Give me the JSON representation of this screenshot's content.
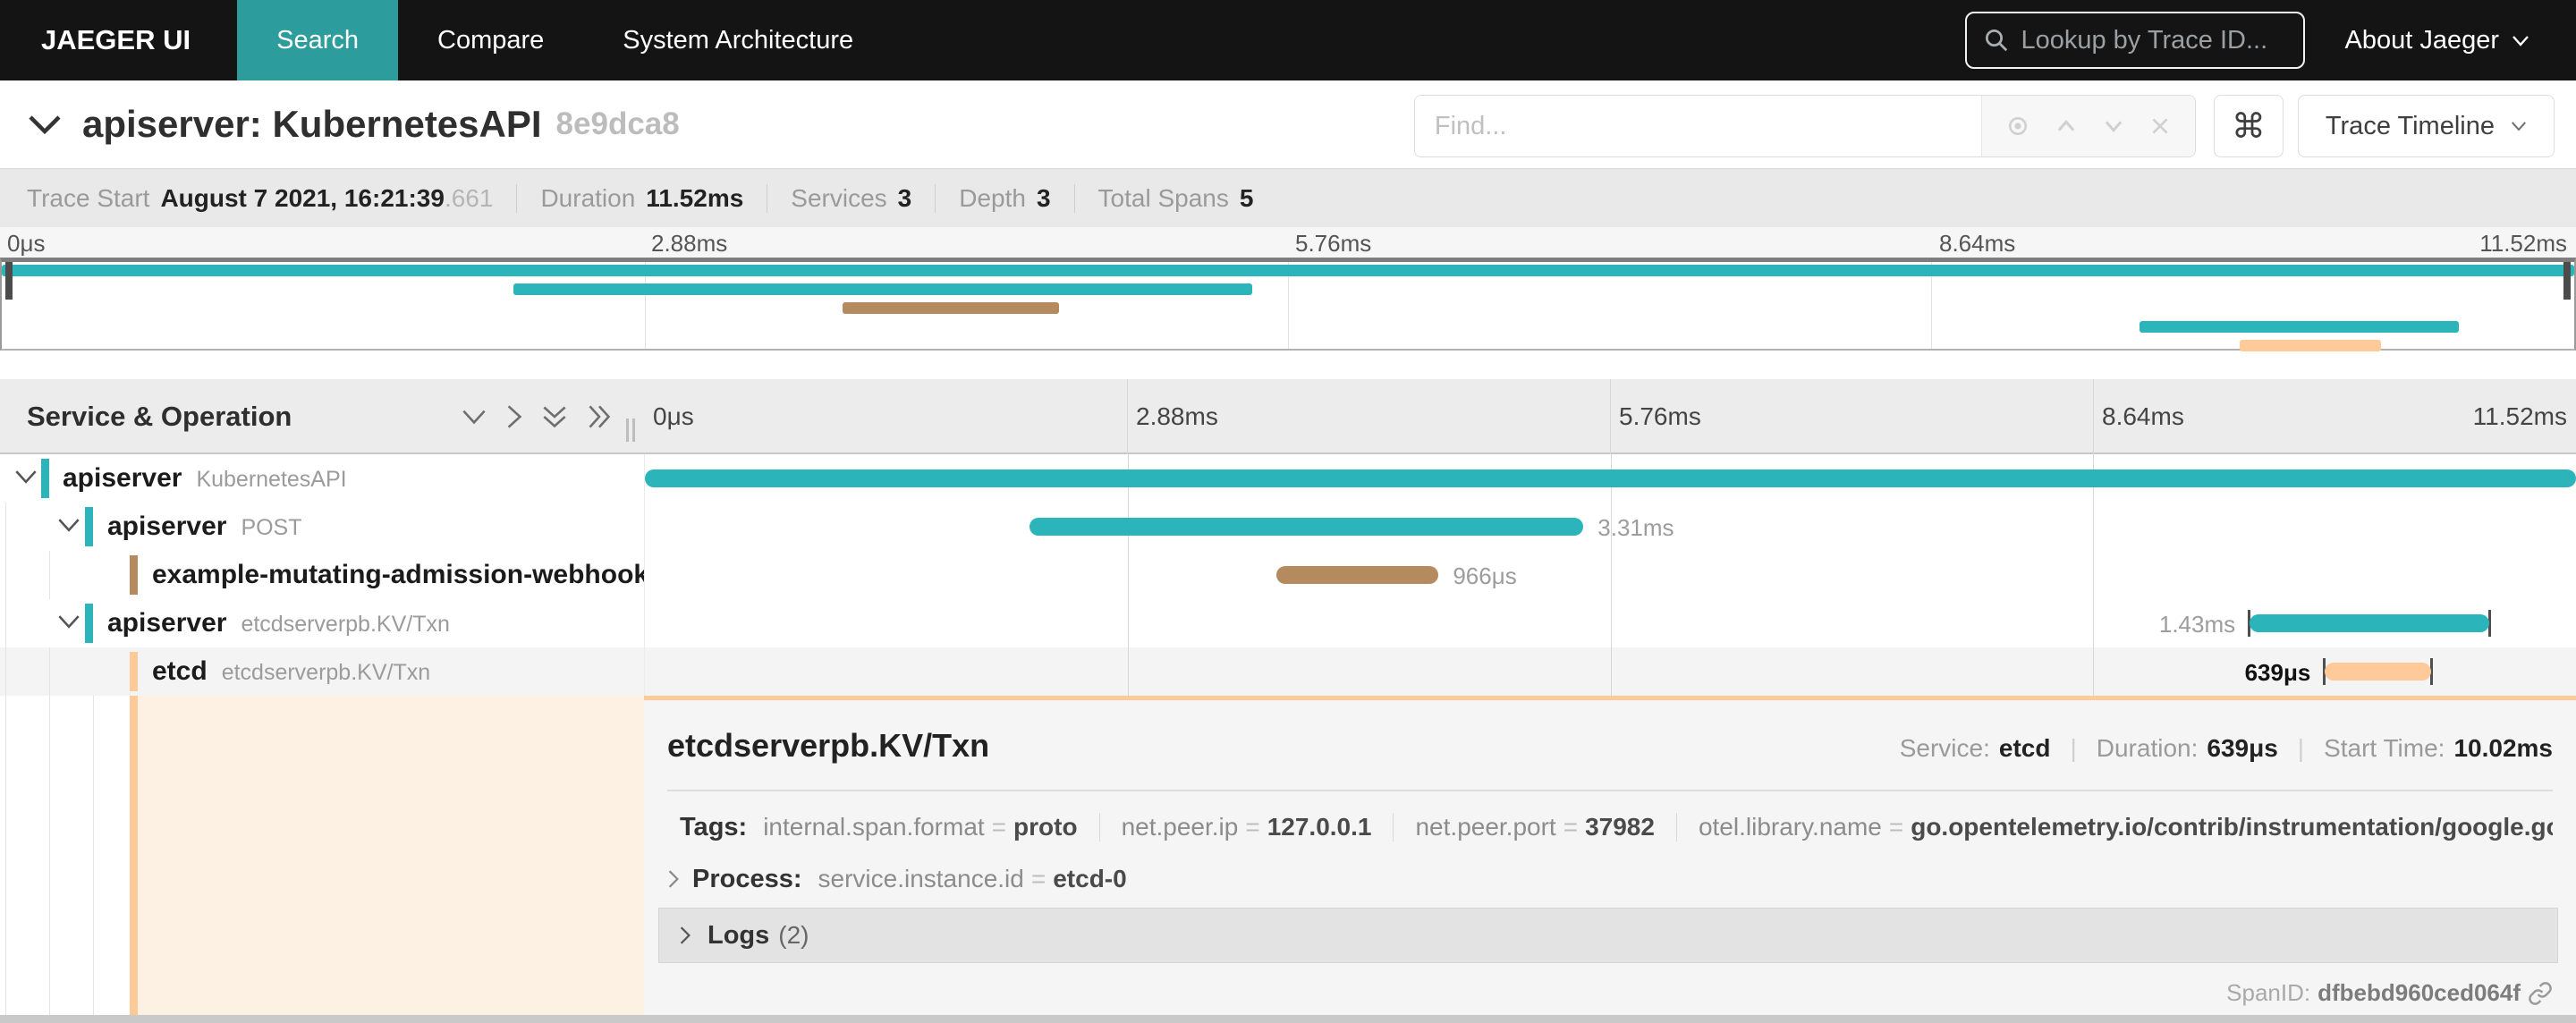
{
  "nav": {
    "brand": "JAEGER UI",
    "tabs": [
      {
        "label": "Search"
      },
      {
        "label": "Compare"
      },
      {
        "label": "System Architecture"
      }
    ],
    "trace_lookup_placeholder": "Lookup by Trace ID...",
    "about_label": "About Jaeger"
  },
  "trace_header": {
    "title": "apiserver: KubernetesAPI",
    "trace_id_short": "8e9dca8",
    "find_placeholder": "Find...",
    "shortcut_key": "⌘",
    "view_selector_label": "Trace Timeline"
  },
  "summary": {
    "trace_start_label": "Trace Start",
    "trace_start_value": "August 7 2021, 16:21:39",
    "trace_start_fraction": ".661",
    "duration_label": "Duration",
    "duration_value": "11.52ms",
    "services_label": "Services",
    "services_value": "3",
    "depth_label": "Depth",
    "depth_value": "3",
    "total_spans_label": "Total Spans",
    "total_spans_value": "5"
  },
  "timeline": {
    "header_left": "Service & Operation",
    "ticks": [
      "0μs",
      "2.88ms",
      "5.76ms",
      "8.64ms",
      "11.52ms"
    ]
  },
  "spans": [
    {
      "service": "apiserver",
      "operation": "KubernetesAPI",
      "depth": 0,
      "has_children": true,
      "color": "#2bb5ba",
      "start_pct": 0,
      "width_pct": 100,
      "duration_label": "",
      "label_side": "right",
      "ticks": false,
      "selected": false
    },
    {
      "service": "apiserver",
      "operation": "POST",
      "depth": 1,
      "has_children": true,
      "color": "#2bb5ba",
      "start_pct": 19.9,
      "width_pct": 28.7,
      "duration_label": "3.31ms",
      "label_side": "right",
      "ticks": false,
      "selected": false
    },
    {
      "service": "example-mutating-admission-webhook...",
      "operation": "",
      "depth": 2,
      "has_children": false,
      "color": "#b48a5e",
      "start_pct": 32.7,
      "width_pct": 8.4,
      "duration_label": "966μs",
      "label_side": "right",
      "ticks": false,
      "selected": false
    },
    {
      "service": "apiserver",
      "operation": "etcdserverpb.KV/Txn",
      "depth": 1,
      "has_children": true,
      "color": "#2bb5ba",
      "start_pct": 83.1,
      "width_pct": 12.4,
      "duration_label": "1.43ms",
      "label_side": "left",
      "ticks": true,
      "selected": false
    },
    {
      "service": "etcd",
      "operation": "etcdserverpb.KV/Txn",
      "depth": 2,
      "has_children": false,
      "color": "#ffca99",
      "start_pct": 87.0,
      "width_pct": 5.5,
      "duration_label": "639μs",
      "label_side": "left",
      "ticks": true,
      "selected": true
    }
  ],
  "detail": {
    "title": "etcdserverpb.KV/Txn",
    "service_label": "Service:",
    "service_value": "etcd",
    "duration_label": "Duration:",
    "duration_value": "639μs",
    "start_label": "Start Time:",
    "start_value": "10.02ms",
    "tags_label": "Tags:",
    "tags": [
      {
        "k": "internal.span.format",
        "v": "proto"
      },
      {
        "k": "net.peer.ip",
        "v": "127.0.0.1"
      },
      {
        "k": "net.peer.port",
        "v": "37982"
      },
      {
        "k": "otel.library.name",
        "v": "go.opentelemetry.io/contrib/instrumentation/google.gola..."
      }
    ],
    "process_label": "Process:",
    "process": {
      "k": "service.instance.id",
      "v": "etcd-0"
    },
    "logs_label": "Logs",
    "logs_count": "(2)",
    "spanid_label": "SpanID:",
    "spanid_value": "dfbebd960ced064f"
  },
  "colors": {
    "teal": "#2bb5ba",
    "brown": "#b48a5e",
    "peach": "#ffca99",
    "nav_active": "#2d9c9c"
  }
}
